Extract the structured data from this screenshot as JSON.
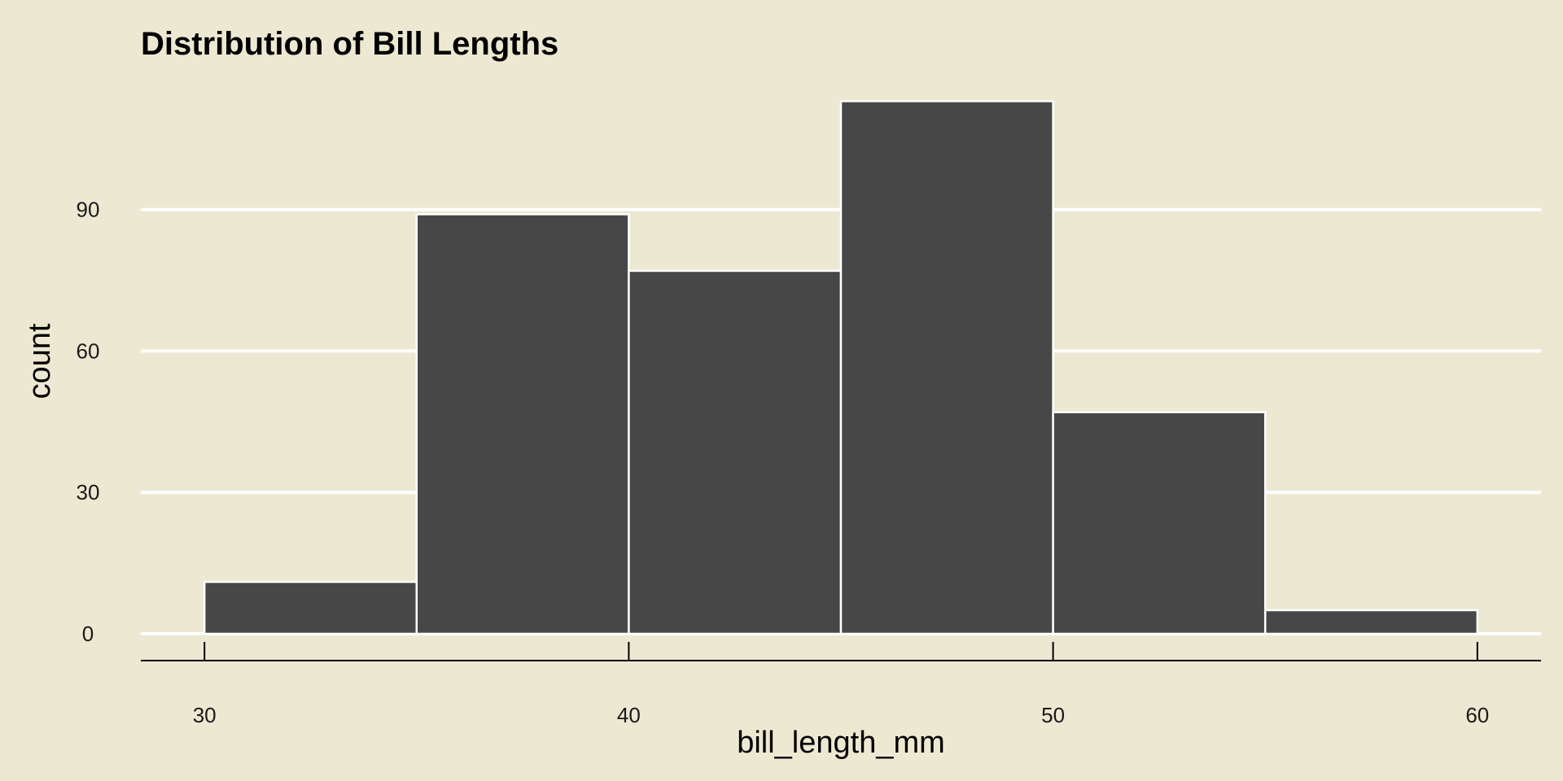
{
  "chart_data": {
    "type": "bar",
    "title": "Distribution of Bill Lengths",
    "xlabel": "bill_length_mm",
    "ylabel": "count",
    "bins": [
      {
        "x0": 30,
        "x1": 35,
        "count": 11
      },
      {
        "x0": 35,
        "x1": 40,
        "count": 89
      },
      {
        "x0": 40,
        "x1": 45,
        "count": 77
      },
      {
        "x0": 45,
        "x1": 50,
        "count": 113
      },
      {
        "x0": 50,
        "x1": 55,
        "count": 47
      },
      {
        "x0": 55,
        "x1": 60,
        "count": 5
      }
    ],
    "x_ticks": [
      "30",
      "40",
      "50",
      "60"
    ],
    "y_ticks": [
      "0",
      "30",
      "60",
      "90"
    ],
    "xlim": [
      28.5,
      61.5
    ],
    "ylim": [
      0,
      116
    ],
    "grid": "horizontal",
    "legend": "none"
  },
  "colors": {
    "background": "#ECE8D2",
    "bar_fill": "#474747",
    "bar_outline": "#FFFFFF",
    "gridline": "#FFFFFF",
    "axis": "#000000"
  }
}
